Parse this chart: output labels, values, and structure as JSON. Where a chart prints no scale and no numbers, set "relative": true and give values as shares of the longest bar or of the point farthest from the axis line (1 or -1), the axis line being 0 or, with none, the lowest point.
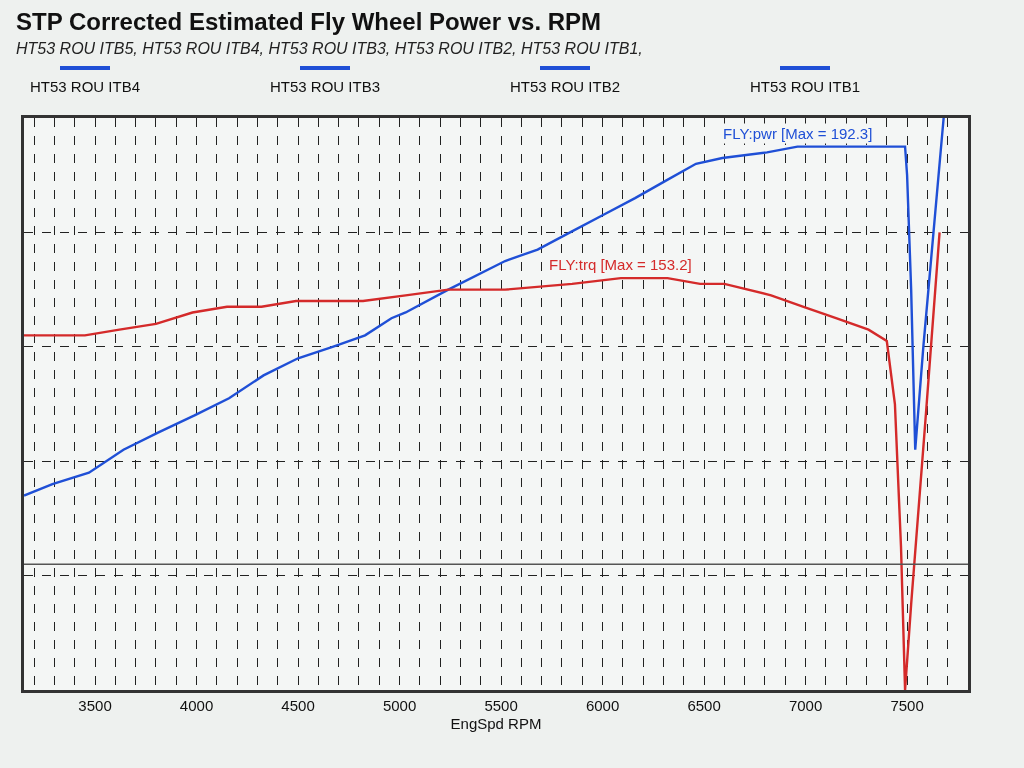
{
  "chart_data": {
    "type": "line",
    "title": "STP Corrected Estimated Fly Wheel Power vs. RPM",
    "subtitle": "HT53 ROU ITB5, HT53 ROU ITB4, HT53 ROU ITB3, HT53 ROU ITB2, HT53 ROU ITB1,",
    "xlabel": "EngSpd RPM",
    "annotations": [
      "HT53 ROU ITB4",
      "HT53 ROU ITB3",
      "HT53 ROU ITB2",
      "HT53 ROU ITB1",
      {
        "text": "FLY:pwr [Max = 192.3]",
        "x": 6960,
        "y": 0.95
      },
      {
        "text": "FLY:trq [Max = 153.2]",
        "x": 6090,
        "y": 0.72
      }
    ],
    "relative": true,
    "xlim": [
      3150,
      7800
    ],
    "xticks": [
      {
        "value": 3200,
        "label": null
      },
      {
        "value": 3300,
        "label": null
      },
      {
        "value": 3400,
        "label": null
      },
      3500,
      {
        "value": 3600,
        "label": null
      },
      {
        "value": 3700,
        "label": null
      },
      {
        "value": 3800,
        "label": null
      },
      {
        "value": 3900,
        "label": null
      },
      4000,
      {
        "value": 4100,
        "label": null
      },
      {
        "value": 4200,
        "label": null
      },
      {
        "value": 4300,
        "label": null
      },
      {
        "value": 4400,
        "label": null
      },
      4500,
      {
        "value": 4600,
        "label": null
      },
      {
        "value": 4700,
        "label": null
      },
      {
        "value": 4800,
        "label": null
      },
      {
        "value": 4900,
        "label": null
      },
      5000,
      {
        "value": 5100,
        "label": null
      },
      {
        "value": 5200,
        "label": null
      },
      {
        "value": 5300,
        "label": null
      },
      {
        "value": 5400,
        "label": null
      },
      5500,
      {
        "value": 5600,
        "label": null
      },
      {
        "value": 5700,
        "label": null
      },
      {
        "value": 5800,
        "label": null
      },
      {
        "value": 5900,
        "label": null
      },
      6000,
      {
        "value": 6100,
        "label": null
      },
      {
        "value": 6200,
        "label": null
      },
      {
        "value": 6300,
        "label": null
      },
      {
        "value": 6400,
        "label": null
      },
      6500,
      {
        "value": 6600,
        "label": null
      },
      {
        "value": 6700,
        "label": null
      },
      {
        "value": 6800,
        "label": null
      },
      {
        "value": 6900,
        "label": null
      },
      7000,
      {
        "value": 7100,
        "label": null
      },
      {
        "value": 7200,
        "label": null
      },
      {
        "value": 7300,
        "label": null
      },
      {
        "value": 7400,
        "label": null
      },
      7500,
      {
        "value": 7600,
        "label": null
      },
      {
        "value": 7700,
        "label": null
      },
      {
        "value": 7800,
        "label": null
      }
    ],
    "grid": true,
    "ref_lines": [
      {
        "axis": "y",
        "value": 0.22,
        "color": "#555555"
      }
    ],
    "series": [
      {
        "color": "#1f4fd6",
        "x": [
          3150,
          3290,
          3470,
          3640,
          3810,
          3990,
          4160,
          4330,
          4500,
          4670,
          4830,
          4960,
          5030,
          5240,
          5520,
          5680,
          5840,
          6000,
          6160,
          6310,
          6460,
          6590,
          6810,
          6960,
          7120,
          7280,
          7380,
          7490,
          7500,
          7520,
          7540,
          7580,
          7630,
          7680
        ],
        "values": [
          0.34,
          0.36,
          0.38,
          0.42,
          0.45,
          0.48,
          0.51,
          0.55,
          0.58,
          0.6,
          0.62,
          0.65,
          0.66,
          0.7,
          0.75,
          0.77,
          0.8,
          0.83,
          0.86,
          0.89,
          0.92,
          0.93,
          0.94,
          0.95,
          0.95,
          0.95,
          0.95,
          0.95,
          0.9,
          0.7,
          0.42,
          0.6,
          0.8,
          1.0
        ]
      },
      {
        "color": "#d42a2a",
        "x": [
          3150,
          3250,
          3450,
          3620,
          3800,
          3980,
          4150,
          4320,
          4490,
          4660,
          4820,
          5030,
          5240,
          5520,
          5850,
          6090,
          6320,
          6480,
          6600,
          6830,
          6990,
          7150,
          7310,
          7400,
          7440,
          7470,
          7490,
          7520,
          7590,
          7660
        ],
        "values": [
          0.62,
          0.62,
          0.62,
          0.63,
          0.64,
          0.66,
          0.67,
          0.67,
          0.68,
          0.68,
          0.68,
          0.69,
          0.7,
          0.7,
          0.71,
          0.72,
          0.72,
          0.71,
          0.71,
          0.69,
          0.67,
          0.65,
          0.63,
          0.61,
          0.5,
          0.25,
          0,
          0.15,
          0.47,
          0.8
        ]
      }
    ]
  }
}
